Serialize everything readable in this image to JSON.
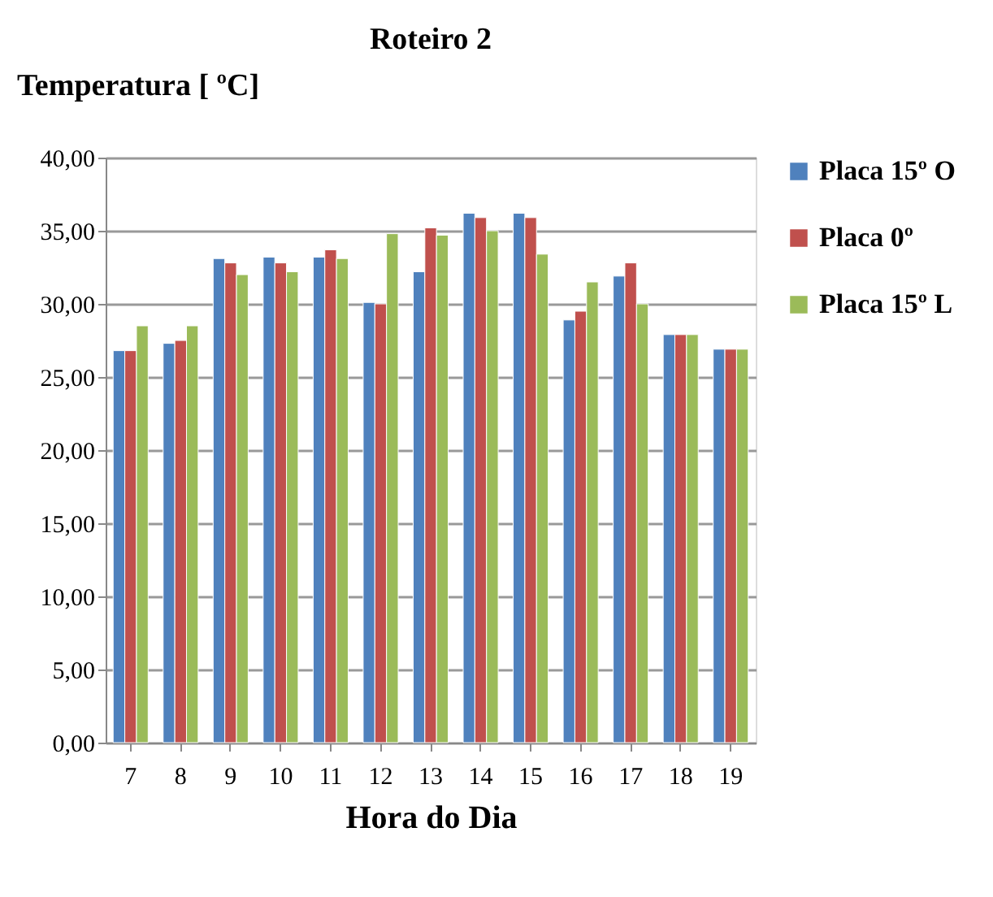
{
  "chart_data": {
    "type": "bar",
    "title": "Roteiro 2",
    "ylabel": "Temperatura [ ºC]",
    "xlabel": "Hora do Dia",
    "categories": [
      "7",
      "8",
      "9",
      "10",
      "11",
      "12",
      "13",
      "14",
      "15",
      "16",
      "17",
      "18",
      "19"
    ],
    "series": [
      {
        "name": "Placa 15º O",
        "color": "#4f81bd",
        "values": [
          26.8,
          27.3,
          33.1,
          33.2,
          33.2,
          30.1,
          32.2,
          36.2,
          36.2,
          28.9,
          31.9,
          27.9,
          26.9
        ]
      },
      {
        "name": "Placa 0º",
        "color": "#c0504d",
        "values": [
          26.8,
          27.5,
          32.8,
          32.8,
          33.7,
          30.0,
          35.2,
          35.9,
          35.9,
          29.5,
          32.8,
          27.9,
          26.9
        ]
      },
      {
        "name": "Placa 15º L",
        "color": "#9bbb59",
        "values": [
          28.5,
          28.5,
          32.0,
          32.2,
          33.1,
          34.8,
          34.7,
          35.0,
          33.4,
          31.5,
          30.0,
          27.9,
          26.9
        ]
      }
    ],
    "ylim": [
      0,
      40
    ],
    "yticks": [
      {
        "value": 0,
        "label": "0,00"
      },
      {
        "value": 5,
        "label": "5,00"
      },
      {
        "value": 10,
        "label": "10,00"
      },
      {
        "value": 15,
        "label": "15,00"
      },
      {
        "value": 20,
        "label": "20,00"
      },
      {
        "value": 25,
        "label": "25,00"
      },
      {
        "value": 30,
        "label": "30,00"
      },
      {
        "value": 35,
        "label": "35,00"
      },
      {
        "value": 40,
        "label": "40,00"
      }
    ],
    "grid": "y",
    "legend": "right"
  }
}
